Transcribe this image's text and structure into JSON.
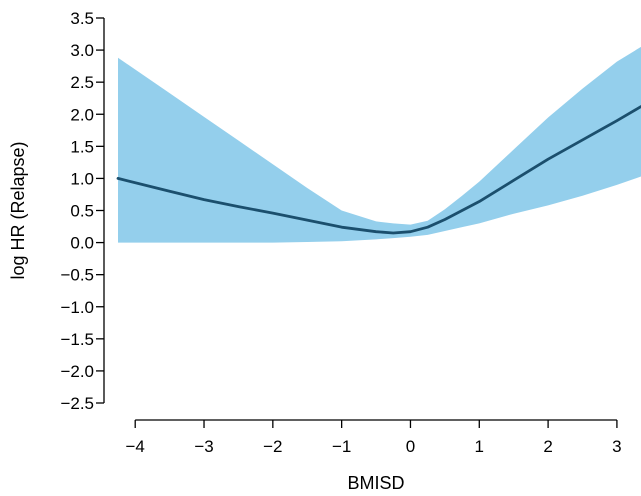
{
  "chart_data": {
    "type": "line",
    "xlabel": "BMISD",
    "ylabel": "log HR (Relapse)",
    "xlim": [
      -4.25,
      3.35
    ],
    "ylim": [
      -2.5,
      3.5
    ],
    "x_ticks": [
      -4,
      -3,
      -2,
      -1,
      0,
      1,
      2,
      3
    ],
    "x_tick_labels": [
      "−4",
      "−3",
      "−2",
      "−1",
      "0",
      "1",
      "2",
      "3"
    ],
    "y_ticks": [
      -2.5,
      -2.0,
      -1.5,
      -1.0,
      -0.5,
      0.0,
      0.5,
      1.0,
      1.5,
      2.0,
      2.5,
      3.0,
      3.5
    ],
    "y_tick_labels": [
      "−2.5",
      "−2.0",
      "−1.5",
      "−1.0",
      "−0.5",
      "0.0",
      "0.5",
      "1.0",
      "1.5",
      "2.0",
      "2.5",
      "3.0",
      "3.5"
    ],
    "grid": false,
    "series": [
      {
        "kind": "estimate",
        "x": [
          -4.25,
          -3.5,
          -3.0,
          -2.5,
          -2.0,
          -1.5,
          -1.0,
          -0.5,
          -0.25,
          0.0,
          0.25,
          0.5,
          0.75,
          1.0,
          1.5,
          2.0,
          2.5,
          3.0,
          3.35
        ],
        "y": [
          1.0,
          0.8,
          0.67,
          0.56,
          0.46,
          0.35,
          0.24,
          0.17,
          0.15,
          0.17,
          0.24,
          0.36,
          0.5,
          0.64,
          0.97,
          1.3,
          1.6,
          1.9,
          2.12
        ]
      },
      {
        "kind": "confidence_band",
        "x": [
          -4.25,
          -3.5,
          -3.0,
          -2.5,
          -2.0,
          -1.5,
          -1.0,
          -0.5,
          -0.25,
          0.0,
          0.25,
          0.5,
          0.75,
          1.0,
          1.5,
          2.0,
          2.5,
          3.0,
          3.35
        ],
        "lower": [
          0.0,
          0.0,
          0.0,
          0.0,
          0.0,
          0.01,
          0.02,
          0.05,
          0.07,
          0.09,
          0.12,
          0.18,
          0.24,
          0.3,
          0.45,
          0.58,
          0.73,
          0.9,
          1.03
        ],
        "upper": [
          2.88,
          2.33,
          1.96,
          1.59,
          1.22,
          0.85,
          0.5,
          0.33,
          0.3,
          0.28,
          0.34,
          0.52,
          0.73,
          0.95,
          1.45,
          1.95,
          2.4,
          2.82,
          3.05
        ]
      }
    ],
    "colors": {
      "line": "#1b4f6d",
      "band": "#94cfec",
      "axis": "#000000"
    }
  }
}
